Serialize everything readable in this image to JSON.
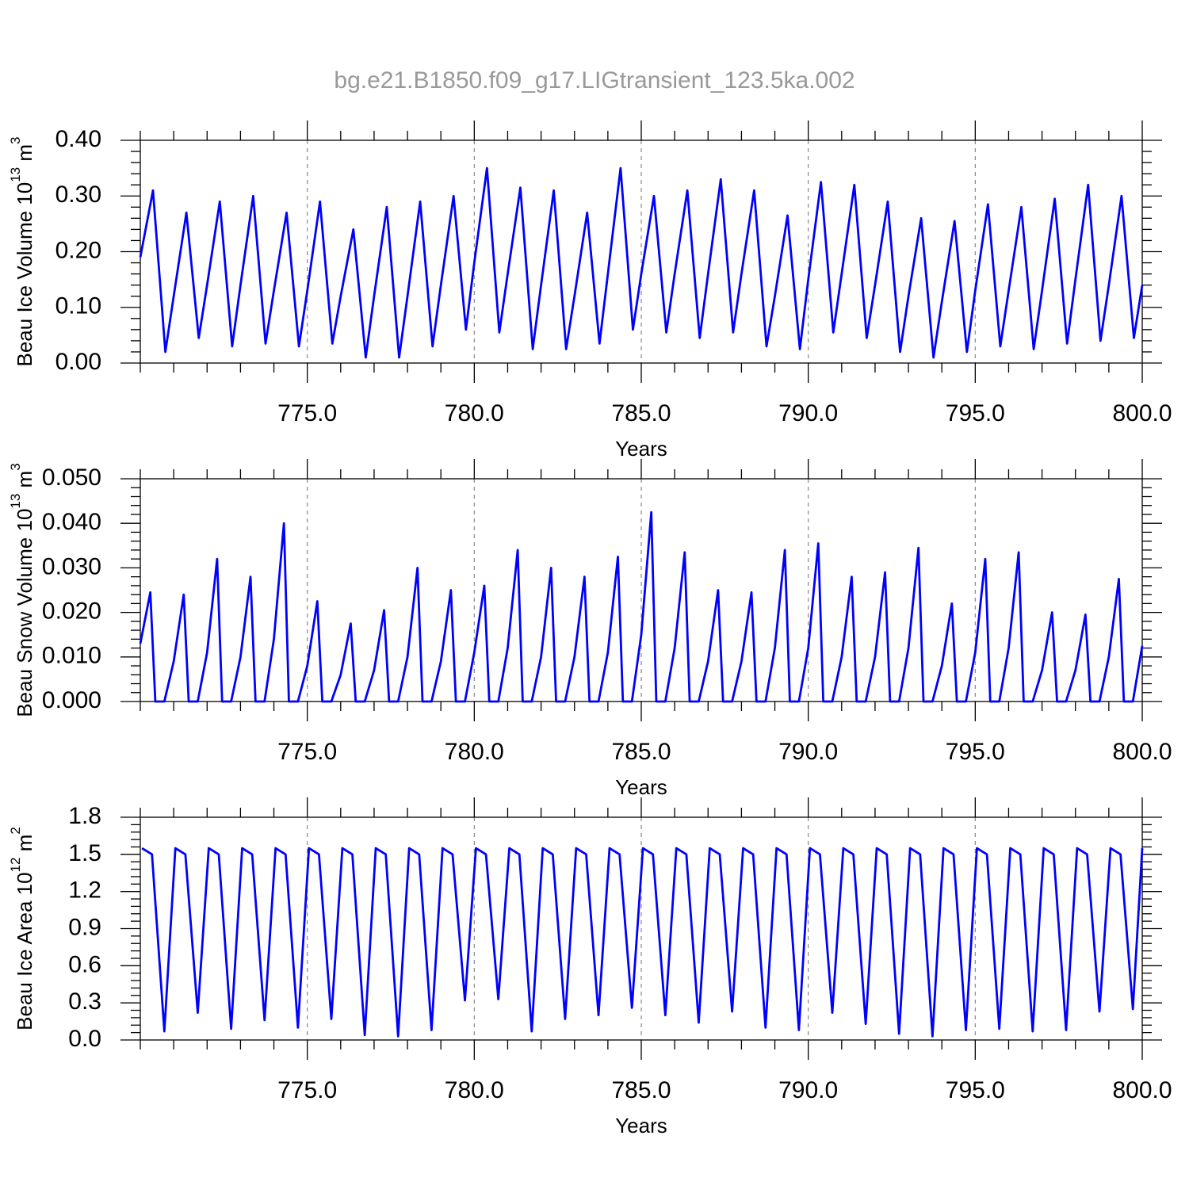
{
  "chart_data": [
    {
      "type": "line",
      "title": "bg.e21.B1850.f09_g17.LIGtransient_123.5ka.002",
      "ylabel": {
        "text": "Beau Ice Volume 10",
        "exp": "13",
        "unit": " m",
        "unit_exp": "3"
      },
      "xlabel": "Years",
      "color": "#0000ff",
      "xlim": [
        770,
        800
      ],
      "ylim": [
        0,
        0.4
      ],
      "xticks": [
        {
          "value": 775,
          "label": "775.0"
        },
        {
          "value": 780,
          "label": "780.0"
        },
        {
          "value": 785,
          "label": "785.0"
        },
        {
          "value": 790,
          "label": "790.0"
        },
        {
          "value": 795,
          "label": "795.0"
        },
        {
          "value": 800,
          "label": "800.0"
        }
      ],
      "yticks": [
        {
          "value": 0,
          "label": "0.00"
        },
        {
          "value": 0.1,
          "label": "0.10"
        },
        {
          "value": 0.2,
          "label": "0.20"
        },
        {
          "value": 0.3,
          "label": "0.30"
        },
        {
          "value": 0.4,
          "label": "0.40"
        }
      ],
      "x": [
        770,
        770.38,
        770.75,
        771,
        771.38,
        771.75,
        772,
        772.38,
        772.75,
        773,
        773.38,
        773.75,
        774,
        774.38,
        774.75,
        775,
        775.38,
        775.75,
        776,
        776.38,
        776.75,
        777,
        777.38,
        777.75,
        778,
        778.38,
        778.75,
        779,
        779.38,
        779.75,
        780,
        780.38,
        780.75,
        781,
        781.38,
        781.75,
        782,
        782.38,
        782.75,
        783,
        783.38,
        783.75,
        784,
        784.38,
        784.75,
        785,
        785.38,
        785.75,
        786,
        786.38,
        786.75,
        787,
        787.38,
        787.75,
        788,
        788.38,
        788.75,
        789,
        789.38,
        789.75,
        790,
        790.38,
        790.75,
        791,
        791.38,
        791.75,
        792,
        792.38,
        792.75,
        793,
        793.38,
        793.75,
        794,
        794.38,
        794.75,
        795,
        795.38,
        795.75,
        796,
        796.38,
        796.75,
        797,
        797.38,
        797.75,
        798,
        798.38,
        798.75,
        799,
        799.38,
        799.75,
        800
      ],
      "values": [
        0.19,
        0.31,
        0.02,
        0.12,
        0.27,
        0.045,
        0.14,
        0.29,
        0.03,
        0.14,
        0.3,
        0.035,
        0.13,
        0.27,
        0.03,
        0.13,
        0.29,
        0.035,
        0.12,
        0.24,
        0.01,
        0.12,
        0.28,
        0.01,
        0.12,
        0.29,
        0.03,
        0.14,
        0.3,
        0.06,
        0.18,
        0.35,
        0.055,
        0.16,
        0.315,
        0.025,
        0.14,
        0.31,
        0.025,
        0.12,
        0.27,
        0.035,
        0.16,
        0.35,
        0.06,
        0.16,
        0.3,
        0.055,
        0.16,
        0.31,
        0.045,
        0.16,
        0.33,
        0.055,
        0.16,
        0.31,
        0.03,
        0.12,
        0.265,
        0.025,
        0.15,
        0.325,
        0.055,
        0.16,
        0.32,
        0.045,
        0.14,
        0.29,
        0.02,
        0.12,
        0.26,
        0.01,
        0.11,
        0.255,
        0.02,
        0.13,
        0.285,
        0.03,
        0.13,
        0.28,
        0.025,
        0.13,
        0.295,
        0.035,
        0.15,
        0.32,
        0.04,
        0.14,
        0.3,
        0.045,
        0.14
      ],
      "grid": true
    },
    {
      "type": "line",
      "ylabel": {
        "text": "Beau Snow Volume 10",
        "exp": "13",
        "unit": " m",
        "unit_exp": "3"
      },
      "xlabel": "Years",
      "color": "#0000ff",
      "xlim": [
        770,
        800
      ],
      "ylim": [
        0,
        0.05
      ],
      "xticks": [
        {
          "value": 775,
          "label": "775.0"
        },
        {
          "value": 780,
          "label": "780.0"
        },
        {
          "value": 785,
          "label": "785.0"
        },
        {
          "value": 790,
          "label": "790.0"
        },
        {
          "value": 795,
          "label": "795.0"
        },
        {
          "value": 800,
          "label": "800.0"
        }
      ],
      "yticks": [
        {
          "value": 0,
          "label": "0.000"
        },
        {
          "value": 0.01,
          "label": "0.010"
        },
        {
          "value": 0.02,
          "label": "0.020"
        },
        {
          "value": 0.03,
          "label": "0.030"
        },
        {
          "value": 0.04,
          "label": "0.040"
        },
        {
          "value": 0.05,
          "label": "0.050"
        }
      ],
      "x": [
        770,
        770.3,
        770.45,
        770.72,
        771,
        771.3,
        771.45,
        771.72,
        772,
        772.3,
        772.45,
        772.72,
        773,
        773.3,
        773.45,
        773.72,
        774,
        774.3,
        774.45,
        774.72,
        775,
        775.3,
        775.45,
        775.72,
        776,
        776.3,
        776.45,
        776.72,
        777,
        777.3,
        777.45,
        777.72,
        778,
        778.3,
        778.45,
        778.72,
        779,
        779.3,
        779.45,
        779.72,
        780,
        780.3,
        780.45,
        780.72,
        781,
        781.3,
        781.45,
        781.72,
        782,
        782.3,
        782.45,
        782.72,
        783,
        783.3,
        783.45,
        783.72,
        784,
        784.3,
        784.45,
        784.72,
        785,
        785.3,
        785.45,
        785.72,
        786,
        786.3,
        786.45,
        786.72,
        787,
        787.3,
        787.45,
        787.72,
        788,
        788.3,
        788.45,
        788.72,
        789,
        789.3,
        789.45,
        789.72,
        790,
        790.3,
        790.45,
        790.72,
        791,
        791.3,
        791.45,
        791.72,
        792,
        792.3,
        792.45,
        792.72,
        793,
        793.3,
        793.45,
        793.72,
        794,
        794.3,
        794.45,
        794.72,
        795,
        795.3,
        795.45,
        795.72,
        796,
        796.3,
        796.45,
        796.72,
        797,
        797.3,
        797.45,
        797.72,
        798,
        798.3,
        798.45,
        798.72,
        799,
        799.3,
        799.45,
        799.72,
        800
      ],
      "values": [
        0.013,
        0.0245,
        0,
        0,
        0.009,
        0.024,
        0,
        0,
        0.011,
        0.032,
        0,
        0,
        0.01,
        0.028,
        0,
        0,
        0.014,
        0.04,
        0,
        0,
        0.008,
        0.0225,
        0,
        0,
        0.006,
        0.0175,
        0,
        0,
        0.007,
        0.0205,
        0,
        0,
        0.01,
        0.03,
        0,
        0,
        0.009,
        0.025,
        0,
        0,
        0.011,
        0.026,
        0,
        0,
        0.012,
        0.034,
        0,
        0,
        0.01,
        0.03,
        0,
        0,
        0.01,
        0.028,
        0,
        0,
        0.011,
        0.0325,
        0,
        0,
        0.015,
        0.0425,
        0,
        0,
        0.012,
        0.0335,
        0,
        0,
        0.009,
        0.025,
        0,
        0,
        0.009,
        0.0245,
        0,
        0,
        0.012,
        0.034,
        0,
        0,
        0.012,
        0.0355,
        0,
        0,
        0.01,
        0.028,
        0,
        0,
        0.01,
        0.029,
        0,
        0,
        0.012,
        0.0345,
        0,
        0,
        0.008,
        0.022,
        0,
        0,
        0.011,
        0.032,
        0,
        0,
        0.012,
        0.0335,
        0,
        0,
        0.007,
        0.02,
        0,
        0,
        0.007,
        0.0195,
        0,
        0,
        0.01,
        0.0275,
        0,
        0,
        0.0125
      ],
      "grid": true
    },
    {
      "type": "line",
      "ylabel": {
        "text": "Beau Ice Area 10",
        "exp": "12",
        "unit": " m",
        "unit_exp": "2"
      },
      "xlabel": "Years",
      "color": "#0000ff",
      "xlim": [
        770,
        800
      ],
      "ylim": [
        0,
        1.8
      ],
      "xticks": [
        {
          "value": 775,
          "label": "775.0"
        },
        {
          "value": 780,
          "label": "780.0"
        },
        {
          "value": 785,
          "label": "785.0"
        },
        {
          "value": 790,
          "label": "790.0"
        },
        {
          "value": 795,
          "label": "795.0"
        },
        {
          "value": 800,
          "label": "800.0"
        }
      ],
      "yticks": [
        {
          "value": 0,
          "label": "0.0"
        },
        0.3,
        0.6,
        0.9,
        1.2,
        1.5,
        1.8
      ],
      "x": [
        770.05,
        770.35,
        770.72,
        771.05,
        771.35,
        771.72,
        772.05,
        772.35,
        772.72,
        773.05,
        773.35,
        773.72,
        774.05,
        774.35,
        774.72,
        775.05,
        775.35,
        775.72,
        776.05,
        776.35,
        776.72,
        777.05,
        777.35,
        777.72,
        778.05,
        778.35,
        778.72,
        779.05,
        779.35,
        779.72,
        780.05,
        780.35,
        780.72,
        781.05,
        781.35,
        781.72,
        782.05,
        782.35,
        782.72,
        783.05,
        783.35,
        783.72,
        784.05,
        784.35,
        784.72,
        785.05,
        785.35,
        785.72,
        786.05,
        786.35,
        786.72,
        787.05,
        787.35,
        787.72,
        788.05,
        788.35,
        788.72,
        789.05,
        789.35,
        789.72,
        790.05,
        790.35,
        790.72,
        791.05,
        791.35,
        791.72,
        792.05,
        792.35,
        792.72,
        793.05,
        793.35,
        793.72,
        794.05,
        794.35,
        794.72,
        795.05,
        795.35,
        795.72,
        796.05,
        796.35,
        796.72,
        797.05,
        797.35,
        797.72,
        798.05,
        798.35,
        798.72,
        799.05,
        799.35,
        799.72,
        800
      ],
      "values": [
        1.55,
        1.5,
        0.07,
        1.55,
        1.5,
        0.22,
        1.55,
        1.5,
        0.09,
        1.55,
        1.5,
        0.16,
        1.55,
        1.5,
        0.1,
        1.55,
        1.5,
        0.17,
        1.55,
        1.5,
        0.04,
        1.55,
        1.5,
        0.03,
        1.55,
        1.5,
        0.08,
        1.55,
        1.5,
        0.32,
        1.55,
        1.5,
        0.33,
        1.55,
        1.5,
        0.07,
        1.55,
        1.5,
        0.17,
        1.55,
        1.5,
        0.2,
        1.55,
        1.5,
        0.26,
        1.55,
        1.5,
        0.2,
        1.55,
        1.5,
        0.14,
        1.55,
        1.5,
        0.23,
        1.55,
        1.5,
        0.1,
        1.55,
        1.5,
        0.08,
        1.55,
        1.5,
        0.22,
        1.55,
        1.5,
        0.13,
        1.55,
        1.5,
        0.05,
        1.55,
        1.5,
        0.03,
        1.55,
        1.5,
        0.08,
        1.55,
        1.5,
        0.09,
        1.55,
        1.5,
        0.07,
        1.55,
        1.5,
        0.08,
        1.55,
        1.5,
        0.23,
        1.55,
        1.5,
        0.25,
        1.55
      ],
      "grid": true
    }
  ]
}
